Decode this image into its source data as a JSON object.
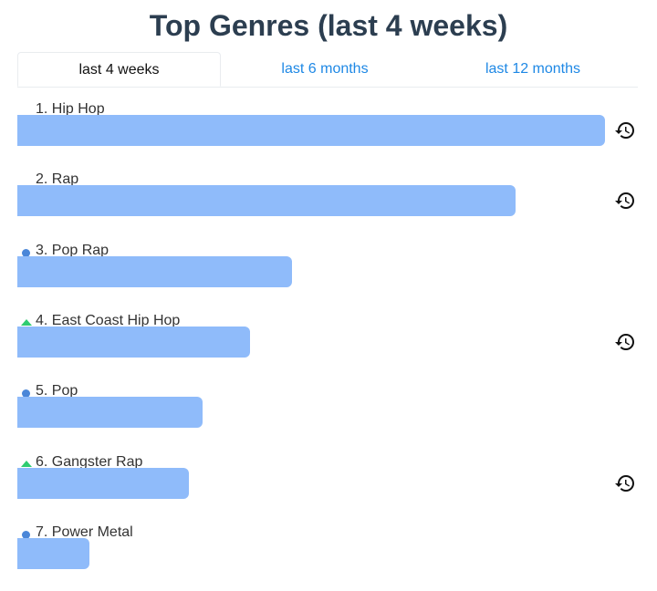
{
  "title": "Top Genres (last 4 weeks)",
  "tabs": [
    {
      "label": "last 4 weeks",
      "active": true
    },
    {
      "label": "last 6 months",
      "active": false
    },
    {
      "label": "last 12 months",
      "active": false
    }
  ],
  "colors": {
    "bar": "#8fbbfa",
    "tab_link": "#1e88e5",
    "title": "#2c3e50",
    "new_dot": "#4a86d8",
    "up_arrow": "#2ecc71"
  },
  "chart_data": {
    "type": "bar",
    "orientation": "horizontal",
    "title": "Top Genres (last 4 weeks)",
    "categories": [
      "1. Hip Hop",
      "2. Rap",
      "3. Pop Rap",
      "4. East Coast Hip Hop",
      "5. Pop",
      "6. Gangster Rap",
      "7. Power Metal"
    ],
    "values": [
      1.0,
      0.848,
      0.468,
      0.396,
      0.315,
      0.292,
      0.123
    ],
    "value_unit": "fraction of top genre",
    "markers": [
      "none",
      "none",
      "new",
      "up",
      "new",
      "up",
      "new"
    ],
    "history_icon": [
      true,
      true,
      false,
      true,
      false,
      true,
      false
    ],
    "grid": false,
    "legend": "none"
  }
}
